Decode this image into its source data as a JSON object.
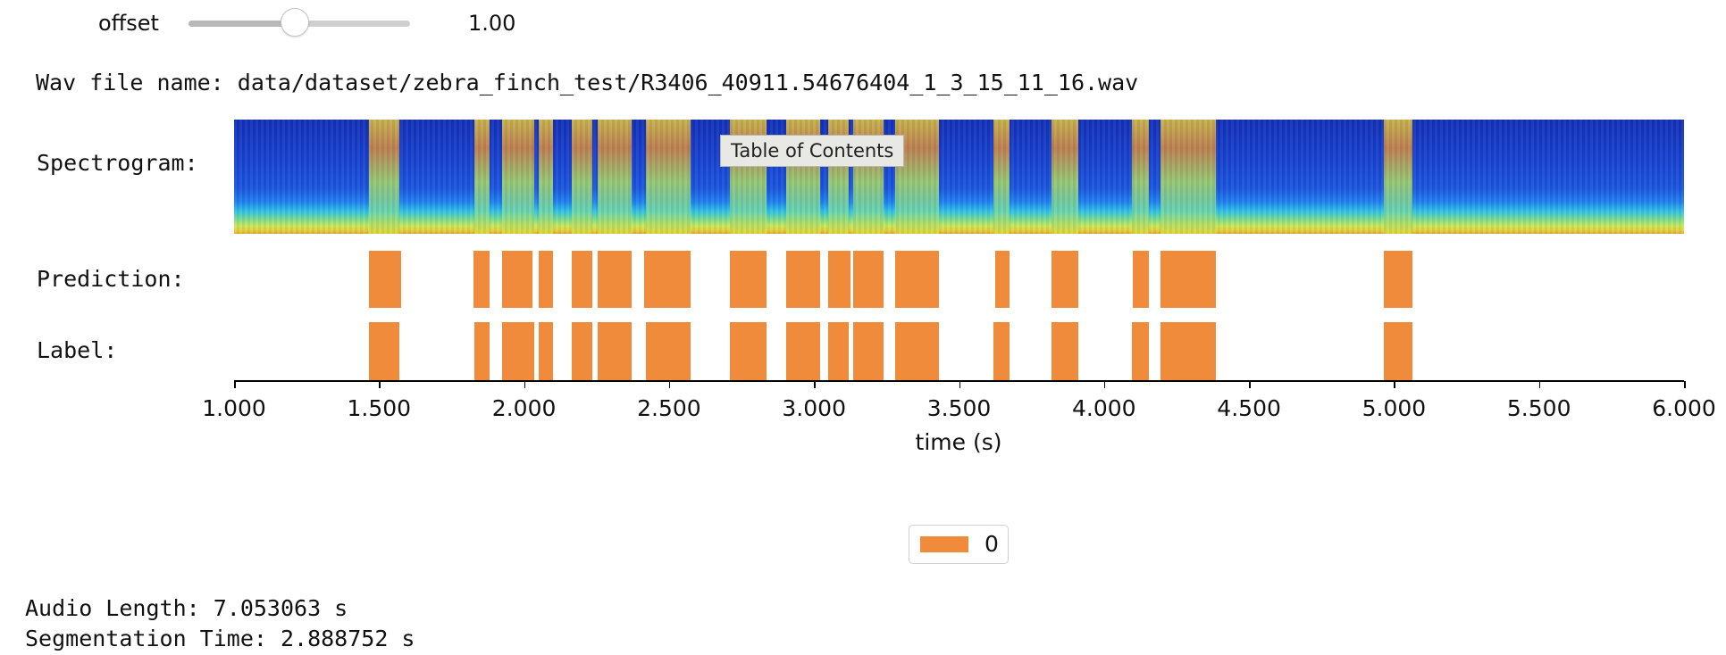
{
  "slider": {
    "label": "offset",
    "value_text": "1.00",
    "fraction": 0.48
  },
  "wav": {
    "text": "Wav file name: data/dataset/zebra_finch_test/R3406_40911.54676404_1_3_15_11_16.wav"
  },
  "rows": {
    "spectrogram": "Spectrogram:",
    "prediction": "Prediction:",
    "label": "Label:"
  },
  "tooltip": "Table of Contents",
  "chart_data": {
    "type": "bar",
    "xlim": [
      1.0,
      6.0
    ],
    "xticks": [
      "1.000",
      "1.500",
      "2.000",
      "2.500",
      "3.000",
      "3.500",
      "4.000",
      "4.500",
      "5.000",
      "5.500",
      "6.000"
    ],
    "xlabel": "time (s)",
    "legend": [
      "0"
    ],
    "legend_placement": "bottom-center",
    "color": "#f08b3c",
    "prediction": [
      [
        1.465,
        1.575
      ],
      [
        1.825,
        1.88
      ],
      [
        1.925,
        2.03
      ],
      [
        2.05,
        2.1
      ],
      [
        2.165,
        2.235
      ],
      [
        2.255,
        2.37
      ],
      [
        2.415,
        2.575
      ],
      [
        2.71,
        2.835
      ],
      [
        2.905,
        3.02
      ],
      [
        3.05,
        3.125
      ],
      [
        3.135,
        3.24
      ],
      [
        3.28,
        3.43
      ],
      [
        3.625,
        3.675
      ],
      [
        3.82,
        3.91
      ],
      [
        4.1,
        4.155
      ],
      [
        4.195,
        4.385
      ],
      [
        4.965,
        5.065
      ]
    ],
    "label": [
      [
        1.465,
        1.57
      ],
      [
        1.83,
        1.88
      ],
      [
        1.925,
        2.035
      ],
      [
        2.05,
        2.1
      ],
      [
        2.165,
        2.235
      ],
      [
        2.255,
        2.37
      ],
      [
        2.42,
        2.575
      ],
      [
        2.71,
        2.835
      ],
      [
        2.905,
        3.02
      ],
      [
        3.05,
        3.12
      ],
      [
        3.135,
        3.24
      ],
      [
        3.28,
        3.43
      ],
      [
        3.62,
        3.675
      ],
      [
        3.82,
        3.91
      ],
      [
        4.095,
        4.155
      ],
      [
        4.195,
        4.385
      ],
      [
        4.965,
        5.065
      ]
    ]
  },
  "stats": {
    "audio_length": "Audio Length: 7.053063 s",
    "segmentation_time": "Segmentation Time: 2.888752 s"
  }
}
